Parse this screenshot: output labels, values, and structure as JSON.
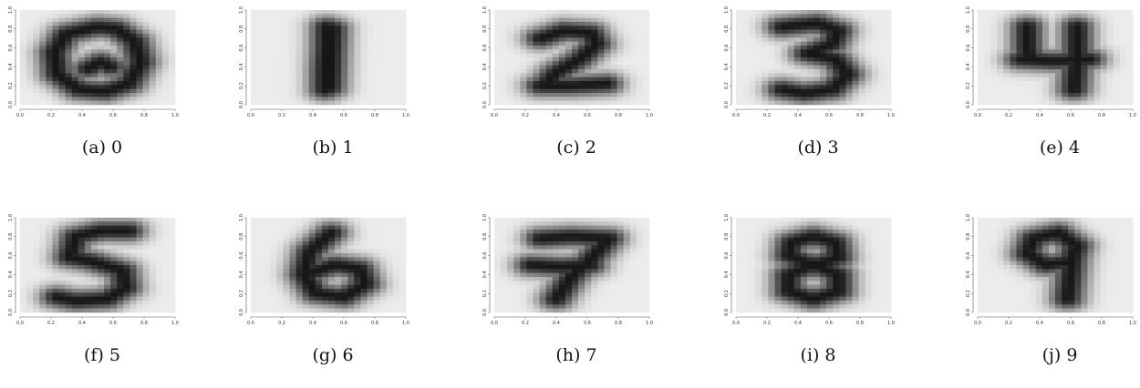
{
  "chart_data": [
    {
      "type": "heatmap",
      "caption": "(a) 0",
      "digit": "0",
      "xticks": [
        "0.0",
        "0.2",
        "0.4",
        "0.6",
        "0.8",
        "1.0"
      ],
      "yticks": [
        "0.0",
        "0.2",
        "0.4",
        "0.6",
        "0.8",
        "1.0"
      ],
      "xlim": [
        0,
        1
      ],
      "ylim": [
        0,
        1
      ]
    },
    {
      "type": "heatmap",
      "caption": "(b) 1",
      "digit": "1",
      "xticks": [
        "0.0",
        "0.2",
        "0.4",
        "0.6",
        "0.8",
        "1.0"
      ],
      "yticks": [
        "0.0",
        "0.2",
        "0.4",
        "0.6",
        "0.8",
        "1.0"
      ],
      "xlim": [
        0,
        1
      ],
      "ylim": [
        0,
        1
      ]
    },
    {
      "type": "heatmap",
      "caption": "(c) 2",
      "digit": "2",
      "xticks": [
        "0.0",
        "0.2",
        "0.4",
        "0.6",
        "0.8",
        "1.0"
      ],
      "yticks": [
        "0.0",
        "0.2",
        "0.4",
        "0.6",
        "0.8",
        "1.0"
      ],
      "xlim": [
        0,
        1
      ],
      "ylim": [
        0,
        1
      ]
    },
    {
      "type": "heatmap",
      "caption": "(d) 3",
      "digit": "3",
      "xticks": [
        "0.0",
        "0.2",
        "0.4",
        "0.6",
        "0.8",
        "1.0"
      ],
      "yticks": [
        "0.0",
        "0.2",
        "0.4",
        "0.6",
        "0.8",
        "1.0"
      ],
      "xlim": [
        0,
        1
      ],
      "ylim": [
        0,
        1
      ]
    },
    {
      "type": "heatmap",
      "caption": "(e) 4",
      "digit": "4",
      "xticks": [
        "0.0",
        "0.2",
        "0.4",
        "0.6",
        "0.8",
        "1.0"
      ],
      "yticks": [
        "0.0",
        "0.2",
        "0.4",
        "0.6",
        "0.8",
        "1.0"
      ],
      "xlim": [
        0,
        1
      ],
      "ylim": [
        0,
        1
      ]
    },
    {
      "type": "heatmap",
      "caption": "(f) 5",
      "digit": "5",
      "xticks": [
        "0.0",
        "0.2",
        "0.4",
        "0.6",
        "0.8",
        "1.0"
      ],
      "yticks": [
        "0.0",
        "0.2",
        "0.4",
        "0.6",
        "0.8",
        "1.0"
      ],
      "xlim": [
        0,
        1
      ],
      "ylim": [
        0,
        1
      ]
    },
    {
      "type": "heatmap",
      "caption": "(g) 6",
      "digit": "6",
      "xticks": [
        "0.0",
        "0.2",
        "0.4",
        "0.6",
        "0.8",
        "1.0"
      ],
      "yticks": [
        "0.0",
        "0.2",
        "0.4",
        "0.6",
        "0.8",
        "1.0"
      ],
      "xlim": [
        0,
        1
      ],
      "ylim": [
        0,
        1
      ]
    },
    {
      "type": "heatmap",
      "caption": "(h) 7",
      "digit": "7",
      "xticks": [
        "0.0",
        "0.2",
        "0.4",
        "0.6",
        "0.8",
        "1.0"
      ],
      "yticks": [
        "0.0",
        "0.2",
        "0.4",
        "0.6",
        "0.8",
        "1.0"
      ],
      "xlim": [
        0,
        1
      ],
      "ylim": [
        0,
        1
      ]
    },
    {
      "type": "heatmap",
      "caption": "(i) 8",
      "digit": "8",
      "xticks": [
        "0.0",
        "0.2",
        "0.4",
        "0.6",
        "0.8",
        "1.0"
      ],
      "yticks": [
        "0.0",
        "0.2",
        "0.4",
        "0.6",
        "0.8",
        "1.0"
      ],
      "xlim": [
        0,
        1
      ],
      "ylim": [
        0,
        1
      ]
    },
    {
      "type": "heatmap",
      "caption": "(j) 9",
      "digit": "9",
      "xticks": [
        "0.0",
        "0.2",
        "0.4",
        "0.6",
        "0.8",
        "1.0"
      ],
      "yticks": [
        "0.0",
        "0.2",
        "0.4",
        "0.6",
        "0.8",
        "1.0"
      ],
      "xlim": [
        0,
        1
      ],
      "ylim": [
        0,
        1
      ]
    }
  ],
  "colors": {
    "background_cell": "#ececec",
    "ink": "#111111",
    "axis": "#555555"
  }
}
